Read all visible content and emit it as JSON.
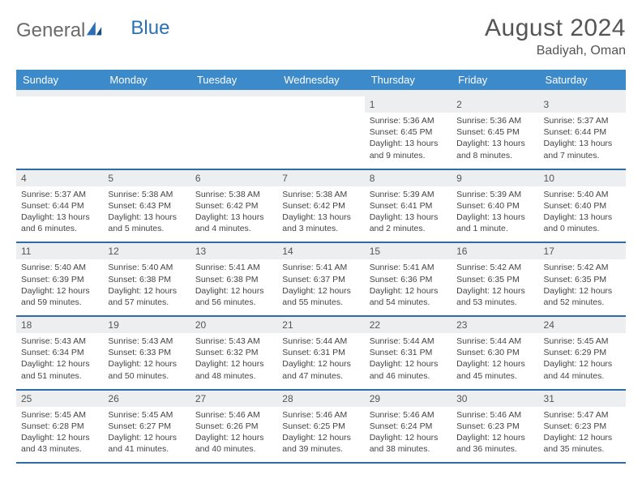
{
  "brand": {
    "word1": "General",
    "word2": "Blue"
  },
  "title": "August 2024",
  "location": "Badiyah, Oman",
  "colors": {
    "header_bg": "#3c8ac9",
    "header_text": "#ffffff",
    "divider": "#2e6ca7",
    "daynum_bg": "#eceef0",
    "body_text": "#444444",
    "title_text": "#555555",
    "logo_gray": "#6a6a6a",
    "logo_blue": "#2b6fb5"
  },
  "days_of_week": [
    "Sunday",
    "Monday",
    "Tuesday",
    "Wednesday",
    "Thursday",
    "Friday",
    "Saturday"
  ],
  "weeks": [
    [
      {
        "n": "",
        "lines": []
      },
      {
        "n": "",
        "lines": []
      },
      {
        "n": "",
        "lines": []
      },
      {
        "n": "",
        "lines": []
      },
      {
        "n": "1",
        "lines": [
          "Sunrise: 5:36 AM",
          "Sunset: 6:45 PM",
          "Daylight: 13 hours",
          "and 9 minutes."
        ]
      },
      {
        "n": "2",
        "lines": [
          "Sunrise: 5:36 AM",
          "Sunset: 6:45 PM",
          "Daylight: 13 hours",
          "and 8 minutes."
        ]
      },
      {
        "n": "3",
        "lines": [
          "Sunrise: 5:37 AM",
          "Sunset: 6:44 PM",
          "Daylight: 13 hours",
          "and 7 minutes."
        ]
      }
    ],
    [
      {
        "n": "4",
        "lines": [
          "Sunrise: 5:37 AM",
          "Sunset: 6:44 PM",
          "Daylight: 13 hours",
          "and 6 minutes."
        ]
      },
      {
        "n": "5",
        "lines": [
          "Sunrise: 5:38 AM",
          "Sunset: 6:43 PM",
          "Daylight: 13 hours",
          "and 5 minutes."
        ]
      },
      {
        "n": "6",
        "lines": [
          "Sunrise: 5:38 AM",
          "Sunset: 6:42 PM",
          "Daylight: 13 hours",
          "and 4 minutes."
        ]
      },
      {
        "n": "7",
        "lines": [
          "Sunrise: 5:38 AM",
          "Sunset: 6:42 PM",
          "Daylight: 13 hours",
          "and 3 minutes."
        ]
      },
      {
        "n": "8",
        "lines": [
          "Sunrise: 5:39 AM",
          "Sunset: 6:41 PM",
          "Daylight: 13 hours",
          "and 2 minutes."
        ]
      },
      {
        "n": "9",
        "lines": [
          "Sunrise: 5:39 AM",
          "Sunset: 6:40 PM",
          "Daylight: 13 hours",
          "and 1 minute."
        ]
      },
      {
        "n": "10",
        "lines": [
          "Sunrise: 5:40 AM",
          "Sunset: 6:40 PM",
          "Daylight: 13 hours",
          "and 0 minutes."
        ]
      }
    ],
    [
      {
        "n": "11",
        "lines": [
          "Sunrise: 5:40 AM",
          "Sunset: 6:39 PM",
          "Daylight: 12 hours",
          "and 59 minutes."
        ]
      },
      {
        "n": "12",
        "lines": [
          "Sunrise: 5:40 AM",
          "Sunset: 6:38 PM",
          "Daylight: 12 hours",
          "and 57 minutes."
        ]
      },
      {
        "n": "13",
        "lines": [
          "Sunrise: 5:41 AM",
          "Sunset: 6:38 PM",
          "Daylight: 12 hours",
          "and 56 minutes."
        ]
      },
      {
        "n": "14",
        "lines": [
          "Sunrise: 5:41 AM",
          "Sunset: 6:37 PM",
          "Daylight: 12 hours",
          "and 55 minutes."
        ]
      },
      {
        "n": "15",
        "lines": [
          "Sunrise: 5:41 AM",
          "Sunset: 6:36 PM",
          "Daylight: 12 hours",
          "and 54 minutes."
        ]
      },
      {
        "n": "16",
        "lines": [
          "Sunrise: 5:42 AM",
          "Sunset: 6:35 PM",
          "Daylight: 12 hours",
          "and 53 minutes."
        ]
      },
      {
        "n": "17",
        "lines": [
          "Sunrise: 5:42 AM",
          "Sunset: 6:35 PM",
          "Daylight: 12 hours",
          "and 52 minutes."
        ]
      }
    ],
    [
      {
        "n": "18",
        "lines": [
          "Sunrise: 5:43 AM",
          "Sunset: 6:34 PM",
          "Daylight: 12 hours",
          "and 51 minutes."
        ]
      },
      {
        "n": "19",
        "lines": [
          "Sunrise: 5:43 AM",
          "Sunset: 6:33 PM",
          "Daylight: 12 hours",
          "and 50 minutes."
        ]
      },
      {
        "n": "20",
        "lines": [
          "Sunrise: 5:43 AM",
          "Sunset: 6:32 PM",
          "Daylight: 12 hours",
          "and 48 minutes."
        ]
      },
      {
        "n": "21",
        "lines": [
          "Sunrise: 5:44 AM",
          "Sunset: 6:31 PM",
          "Daylight: 12 hours",
          "and 47 minutes."
        ]
      },
      {
        "n": "22",
        "lines": [
          "Sunrise: 5:44 AM",
          "Sunset: 6:31 PM",
          "Daylight: 12 hours",
          "and 46 minutes."
        ]
      },
      {
        "n": "23",
        "lines": [
          "Sunrise: 5:44 AM",
          "Sunset: 6:30 PM",
          "Daylight: 12 hours",
          "and 45 minutes."
        ]
      },
      {
        "n": "24",
        "lines": [
          "Sunrise: 5:45 AM",
          "Sunset: 6:29 PM",
          "Daylight: 12 hours",
          "and 44 minutes."
        ]
      }
    ],
    [
      {
        "n": "25",
        "lines": [
          "Sunrise: 5:45 AM",
          "Sunset: 6:28 PM",
          "Daylight: 12 hours",
          "and 43 minutes."
        ]
      },
      {
        "n": "26",
        "lines": [
          "Sunrise: 5:45 AM",
          "Sunset: 6:27 PM",
          "Daylight: 12 hours",
          "and 41 minutes."
        ]
      },
      {
        "n": "27",
        "lines": [
          "Sunrise: 5:46 AM",
          "Sunset: 6:26 PM",
          "Daylight: 12 hours",
          "and 40 minutes."
        ]
      },
      {
        "n": "28",
        "lines": [
          "Sunrise: 5:46 AM",
          "Sunset: 6:25 PM",
          "Daylight: 12 hours",
          "and 39 minutes."
        ]
      },
      {
        "n": "29",
        "lines": [
          "Sunrise: 5:46 AM",
          "Sunset: 6:24 PM",
          "Daylight: 12 hours",
          "and 38 minutes."
        ]
      },
      {
        "n": "30",
        "lines": [
          "Sunrise: 5:46 AM",
          "Sunset: 6:23 PM",
          "Daylight: 12 hours",
          "and 36 minutes."
        ]
      },
      {
        "n": "31",
        "lines": [
          "Sunrise: 5:47 AM",
          "Sunset: 6:23 PM",
          "Daylight: 12 hours",
          "and 35 minutes."
        ]
      }
    ]
  ]
}
